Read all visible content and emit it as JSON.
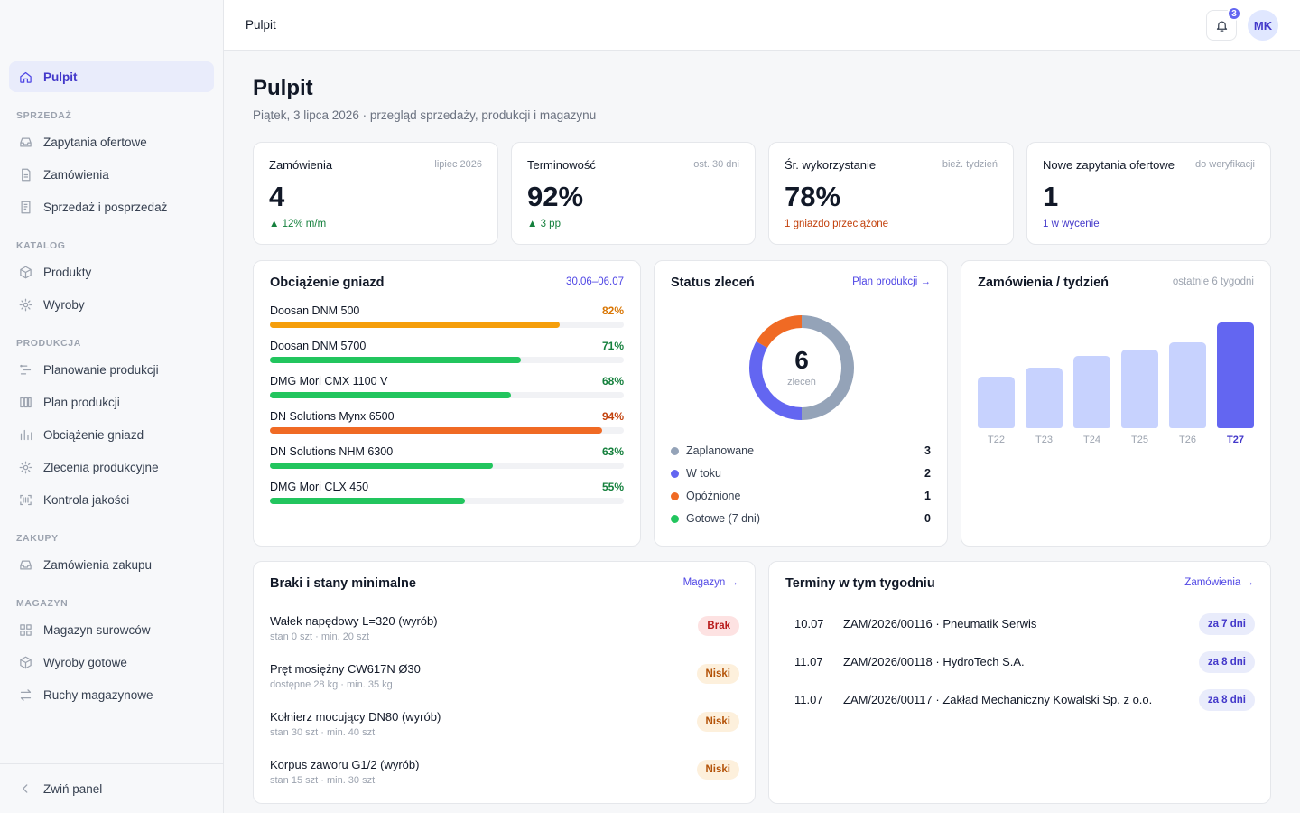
{
  "topbar": {
    "breadcrumb": "Pulpit",
    "notification_count": "3",
    "avatar_initials": "MK"
  },
  "sidebar": {
    "home": "Pulpit",
    "sections": {
      "sales": "SPRZEDAŻ",
      "catalog": "KATALOG",
      "production": "PRODUKCJA",
      "purchases": "ZAKUPY",
      "warehouse": "MAGAZYN"
    },
    "items": {
      "inquiries": "Zapytania ofertowe",
      "orders": "Zamówienia",
      "sales_aftersales": "Sprzedaż i posprzedaż",
      "products": "Produkty",
      "goods": "Wyroby",
      "production_planning": "Planowanie produkcji",
      "production_plan": "Plan produkcji",
      "workcenter_load": "Obciążenie gniazd",
      "production_orders": "Zlecenia produkcyjne",
      "quality_control": "Kontrola jakości",
      "purchase_orders": "Zamówienia zakupu",
      "raw_materials": "Magazyn surowców",
      "finished_goods": "Wyroby gotowe",
      "stock_movements": "Ruchy magazynowe"
    },
    "collapse": "Zwiń panel"
  },
  "page": {
    "title": "Pulpit",
    "subtitle": "Piątek, 3 lipca 2026 · przegląd sprzedaży, produkcji i magazynu"
  },
  "kpis": [
    {
      "label": "Zamówienia",
      "period": "lipiec 2026",
      "value": "4",
      "note": "▲ 12% m/m",
      "note_color": "#15803d"
    },
    {
      "label": "Terminowość",
      "period": "ost. 30 dni",
      "value": "92%",
      "note": "▲ 3 pp",
      "note_color": "#15803d"
    },
    {
      "label": "Śr. wykorzystanie",
      "period": "bież. tydzień",
      "value": "78%",
      "note": "1 gniazdo przeciążone",
      "note_color": "#c2410c"
    },
    {
      "label": "Nowe zapytania ofertowe",
      "period": "do weryfikacji",
      "value": "1",
      "note": "1 w wycenie",
      "note_color": "#4338ca"
    }
  ],
  "workcenter_load": {
    "title": "Obciążenie gniazd",
    "range": "30.06–06.07",
    "rows": [
      {
        "name": "Doosan DNM 500",
        "label": "82%",
        "value": 82,
        "color": "#f59e0b",
        "text_color": "#d97706"
      },
      {
        "name": "Doosan DNM 5700",
        "label": "71%",
        "value": 71,
        "color": "#22c55e",
        "text_color": "#15803d"
      },
      {
        "name": "DMG Mori CMX 1100 V",
        "label": "68%",
        "value": 68,
        "color": "#22c55e",
        "text_color": "#15803d"
      },
      {
        "name": "DN Solutions Mynx 6500",
        "label": "94%",
        "value": 94,
        "color": "#f06a24",
        "text_color": "#c2410c"
      },
      {
        "name": "DN Solutions NHM 6300",
        "label": "63%",
        "value": 63,
        "color": "#22c55e",
        "text_color": "#15803d"
      },
      {
        "name": "DMG Mori CLX 450",
        "label": "55%",
        "value": 55,
        "color": "#22c55e",
        "text_color": "#15803d"
      }
    ]
  },
  "order_status": {
    "title": "Status zleceń",
    "link": "Plan produkcji →",
    "total": "6",
    "total_label": "zleceń",
    "legend": [
      {
        "name": "Zaplanowane",
        "count": "3",
        "value": 3,
        "color": "#94a3b8"
      },
      {
        "name": "W toku",
        "count": "2",
        "value": 2,
        "color": "#6366f1"
      },
      {
        "name": "Opóźnione",
        "count": "1",
        "value": 1,
        "color": "#f06a24"
      },
      {
        "name": "Gotowe (7 dni)",
        "count": "0",
        "value": 0,
        "color": "#22c55e"
      }
    ]
  },
  "chart_data": {
    "type": "bar",
    "title": "Zamówienia / tydzień",
    "subtitle": "ostatnie 6 tygodni",
    "categories": [
      "T22",
      "T23",
      "T24",
      "T25",
      "T26",
      "T27"
    ],
    "values": [
      49,
      57,
      68,
      74,
      81,
      100
    ],
    "highlight": "T27",
    "colors": {
      "default": "#c7d2fe",
      "highlight": "#6366f1"
    }
  },
  "shortages": {
    "title": "Braki i stany minimalne",
    "link": "Magazyn →",
    "items": [
      {
        "name": "Wałek napędowy L=320 (wyrób)",
        "detail": "stan 0 szt · min. 20 szt",
        "status": "Brak",
        "bg": "#fde2e2",
        "fg": "#b91c1c"
      },
      {
        "name": "Pręt mosiężny CW617N Ø30",
        "detail": "dostępne 28 kg · min. 35 kg",
        "status": "Niski",
        "bg": "#fdf0dc",
        "fg": "#b45309"
      },
      {
        "name": "Kołnierz mocujący DN80 (wyrób)",
        "detail": "stan 30 szt · min. 40 szt",
        "status": "Niski",
        "bg": "#fdf0dc",
        "fg": "#b45309"
      },
      {
        "name": "Korpus zaworu G1/2 (wyrób)",
        "detail": "stan 15 szt · min. 30 szt",
        "status": "Niski",
        "bg": "#fdf0dc",
        "fg": "#b45309"
      }
    ]
  },
  "deadlines": {
    "title": "Terminy w tym tygodniu",
    "link": "Zamówienia →",
    "items": [
      {
        "date": "10.07",
        "order": "ZAM/2026/00116 · Pneumatik Serwis",
        "in": "za 7 dni"
      },
      {
        "date": "11.07",
        "order": "ZAM/2026/00118 · HydroTech S.A.",
        "in": "za 8 dni"
      },
      {
        "date": "11.07",
        "order": "ZAM/2026/00117 · Zakład Mechaniczny Kowalski Sp. z o.o.",
        "in": "za 8 dni"
      }
    ]
  }
}
